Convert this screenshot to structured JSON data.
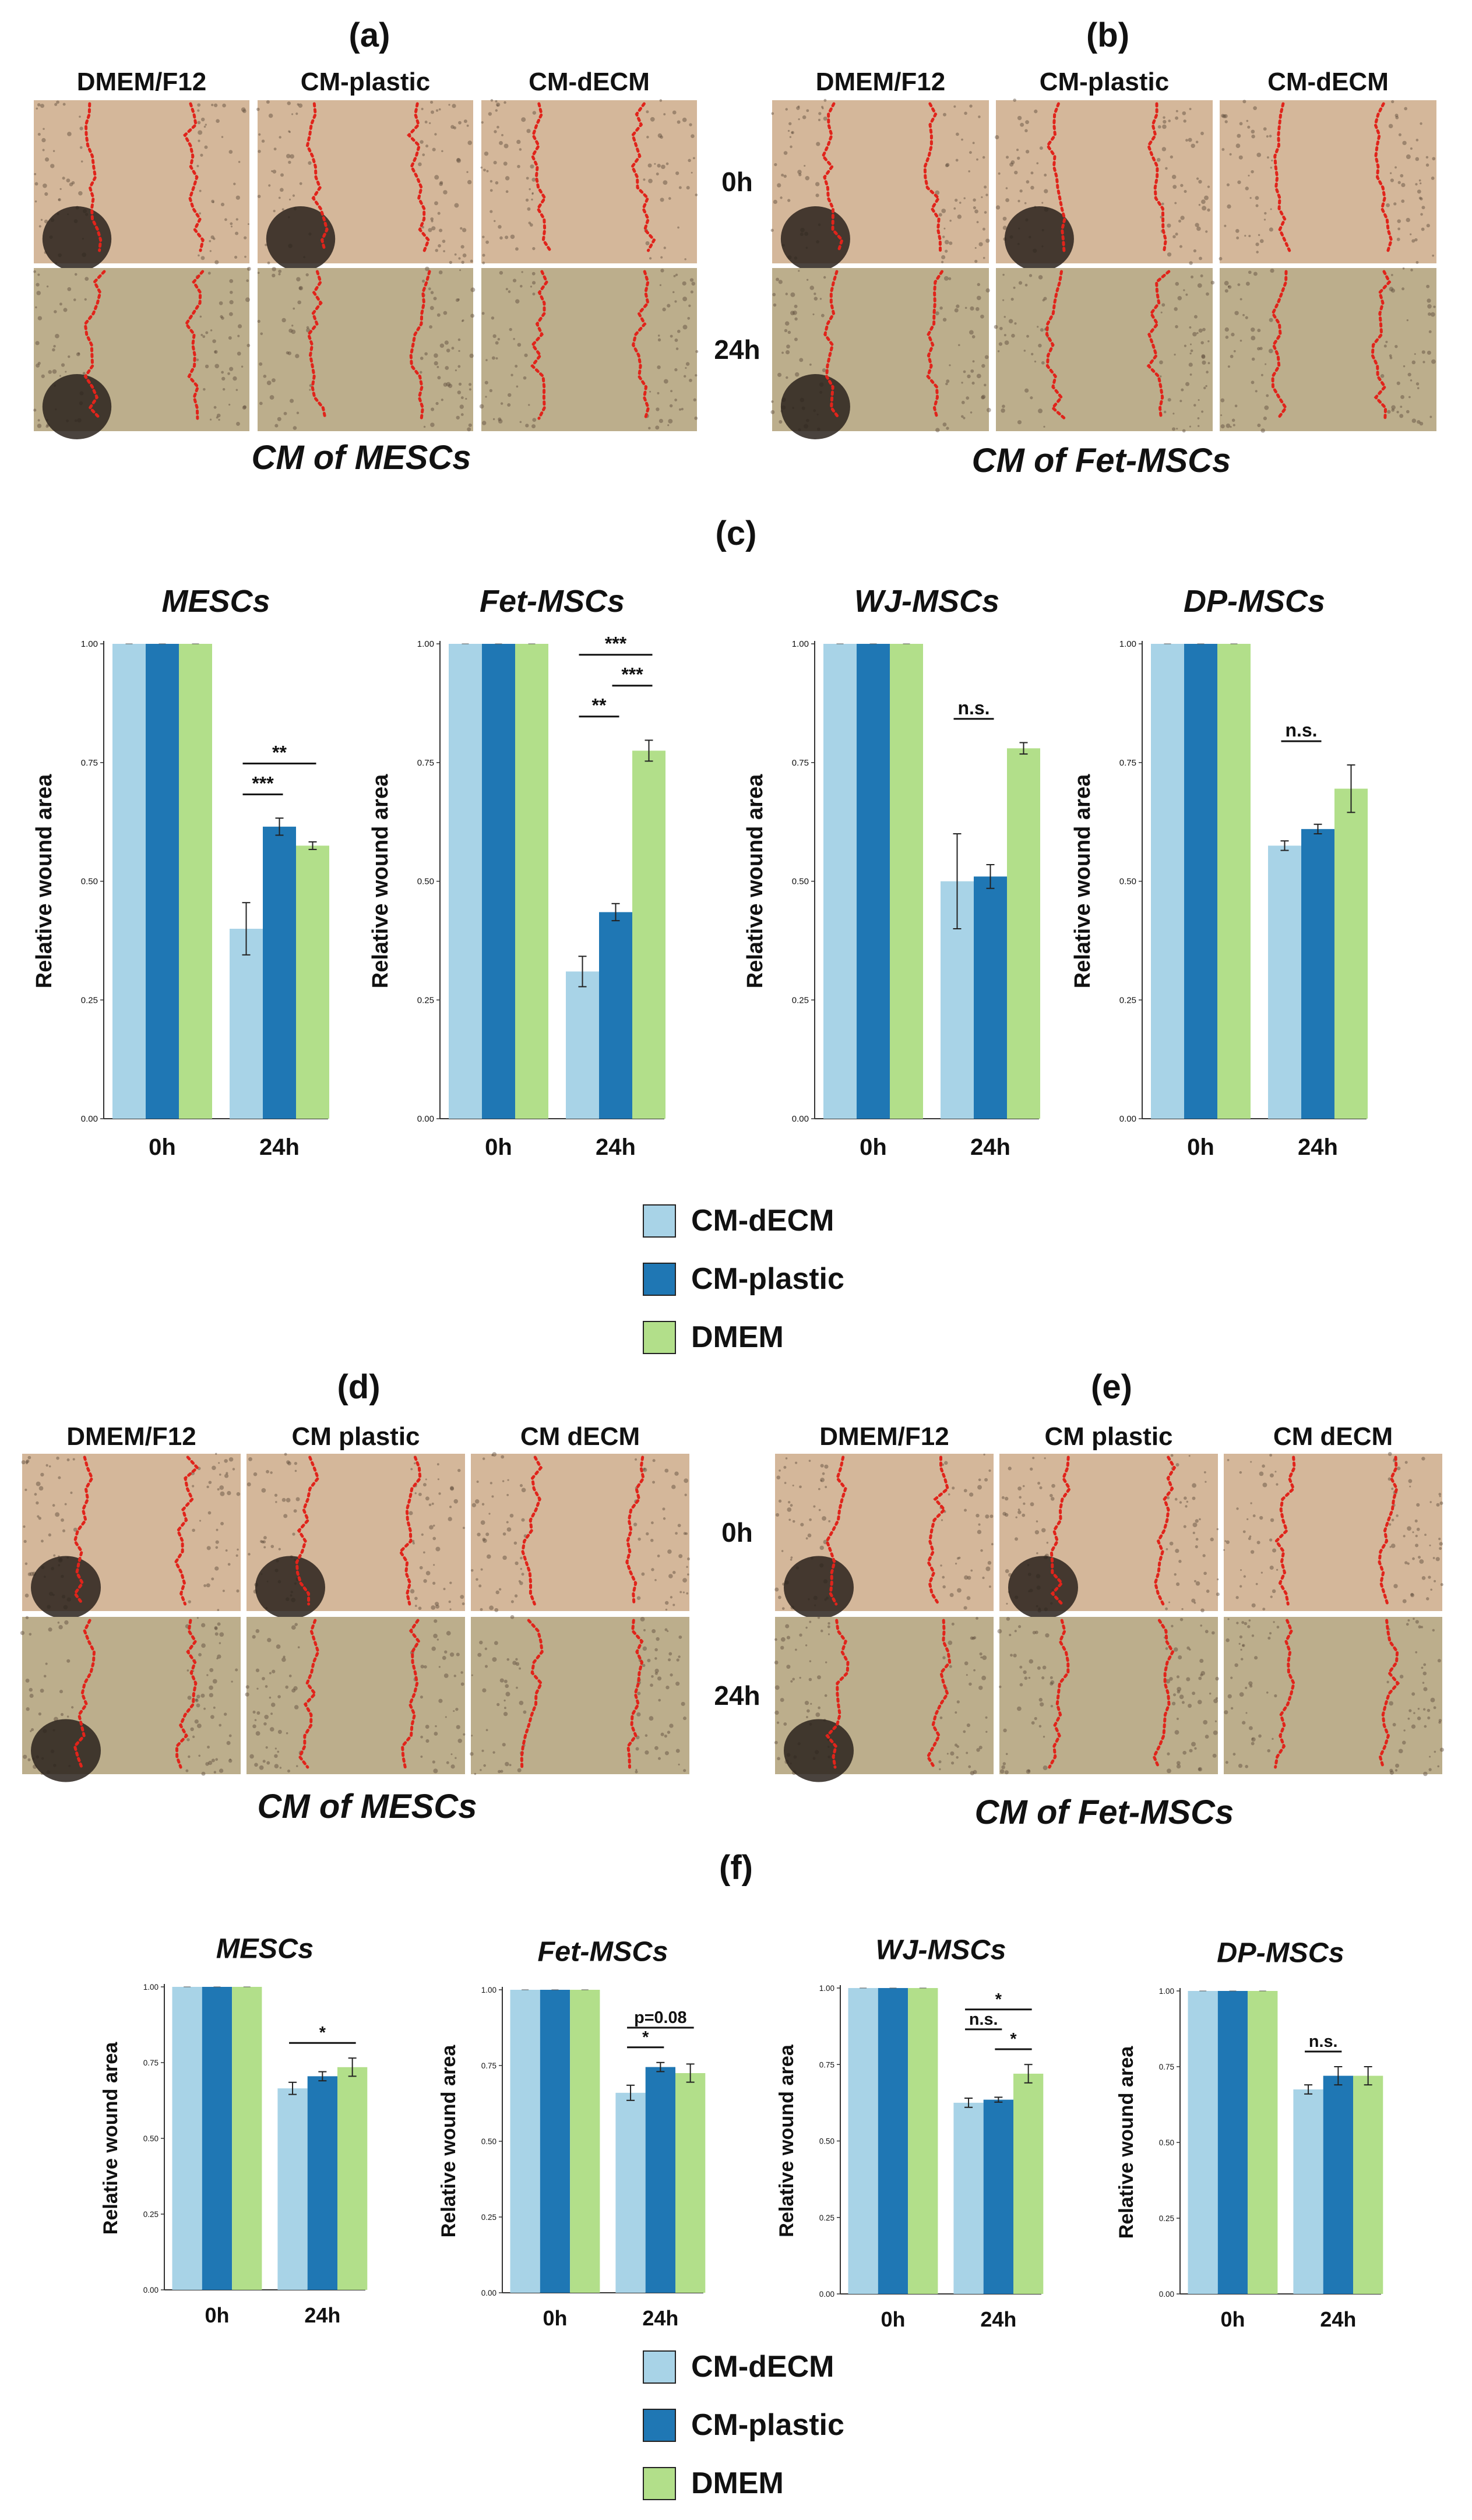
{
  "panels": [
    {
      "letter": "(a)",
      "columns": [
        "DMEM/F12",
        "CM-plastic",
        "CM-dECM"
      ],
      "rows": [
        "0h",
        "24h"
      ],
      "caption": "CM of MESCs"
    },
    {
      "letter": "(b)",
      "columns": [
        "DMEM/F12",
        "CM-plastic",
        "CM-dECM"
      ],
      "rows": [],
      "caption": "CM of Fet-MSCs"
    },
    {
      "letter": "(d)",
      "columns": [
        "DMEM/F12",
        "CM plastic",
        "CM dECM"
      ],
      "rows": [
        "0h",
        "24h"
      ],
      "caption": "CM of MESCs"
    },
    {
      "letter": "(e)",
      "columns": [
        "DMEM/F12",
        "CM plastic",
        "CM dECM"
      ],
      "rows": [],
      "caption": "CM of Fet-MSCs"
    }
  ],
  "chart_groups": [
    {
      "letter": "(c)",
      "legend": [
        "CM-dECM",
        "CM-plastic",
        "DMEM"
      ]
    },
    {
      "letter": "(f)",
      "legend": [
        "CM-dECM",
        "CM-plastic",
        "DMEM"
      ]
    }
  ],
  "colors": {
    "CM-dECM": "#a8d3e7",
    "CM-plastic": "#1f77b4",
    "DMEM": "#b2df8a",
    "wound_line": "#e0241b",
    "bg0": "#d4b79a",
    "bg24": "#bcae8c"
  },
  "chart_data": [
    {
      "id": "c1",
      "type": "bar",
      "title": "MESCs",
      "ylabel": "Relative wound area",
      "categories": [
        "0h",
        "24h"
      ],
      "yticks": [
        "0.00",
        "0.25",
        "0.50",
        "0.75",
        "1.00"
      ],
      "ylim": [
        0,
        1
      ],
      "series": [
        {
          "name": "CM-dECM",
          "values": [
            1.0,
            0.4
          ],
          "errors": [
            0,
            0.055
          ]
        },
        {
          "name": "CM-plastic",
          "values": [
            1.0,
            0.615
          ],
          "errors": [
            0,
            0.018
          ]
        },
        {
          "name": "DMEM",
          "values": [
            1.0,
            0.575
          ],
          "errors": [
            0,
            0.008
          ]
        }
      ],
      "annotations": [
        {
          "text": "**",
          "from": 0,
          "to": 2
        },
        {
          "text": "***",
          "from": 0,
          "to": 1
        }
      ]
    },
    {
      "id": "c2",
      "type": "bar",
      "title": "Fet-MSCs",
      "ylabel": "Relative wound area",
      "categories": [
        "0h",
        "24h"
      ],
      "yticks": [
        "0.00",
        "0.25",
        "0.50",
        "0.75",
        "1.00"
      ],
      "ylim": [
        0,
        1
      ],
      "series": [
        {
          "name": "CM-dECM",
          "values": [
            1.0,
            0.31
          ],
          "errors": [
            0,
            0.032
          ]
        },
        {
          "name": "CM-plastic",
          "values": [
            1.0,
            0.435
          ],
          "errors": [
            0,
            0.018
          ]
        },
        {
          "name": "DMEM",
          "values": [
            1.0,
            0.775
          ],
          "errors": [
            0,
            0.022
          ]
        }
      ],
      "annotations": [
        {
          "text": "***",
          "from": 0,
          "to": 2
        },
        {
          "text": "***",
          "from": 1,
          "to": 2
        },
        {
          "text": "**",
          "from": 0,
          "to": 1
        }
      ]
    },
    {
      "id": "c3",
      "type": "bar",
      "title": "WJ-MSCs",
      "ylabel": "Relative wound area",
      "categories": [
        "0h",
        "24h"
      ],
      "yticks": [
        "0.00",
        "0.25",
        "0.50",
        "0.75",
        "1.00"
      ],
      "ylim": [
        0,
        1
      ],
      "series": [
        {
          "name": "CM-dECM",
          "values": [
            1.0,
            0.5
          ],
          "errors": [
            0,
            0.1
          ]
        },
        {
          "name": "CM-plastic",
          "values": [
            1.0,
            0.51
          ],
          "errors": [
            0,
            0.025
          ]
        },
        {
          "name": "DMEM",
          "values": [
            1.0,
            0.78
          ],
          "errors": [
            0,
            0.012
          ]
        }
      ],
      "annotations": [
        {
          "text": "n.s.",
          "from": 0,
          "to": 1
        }
      ]
    },
    {
      "id": "c4",
      "type": "bar",
      "title": "DP-MSCs",
      "ylabel": "Relative wound area",
      "categories": [
        "0h",
        "24h"
      ],
      "yticks": [
        "0.00",
        "0.25",
        "0.50",
        "0.75",
        "1.00"
      ],
      "ylim": [
        0,
        1
      ],
      "series": [
        {
          "name": "CM-dECM",
          "values": [
            1.0,
            0.575
          ],
          "errors": [
            0,
            0.01
          ]
        },
        {
          "name": "CM-plastic",
          "values": [
            1.0,
            0.61
          ],
          "errors": [
            0,
            0.01
          ]
        },
        {
          "name": "DMEM",
          "values": [
            1.0,
            0.695
          ],
          "errors": [
            0,
            0.05
          ]
        }
      ],
      "annotations": [
        {
          "text": "n.s.",
          "from": 0,
          "to": 1
        }
      ]
    },
    {
      "id": "f1",
      "type": "bar",
      "title": "MESCs",
      "ylabel": "Relative wound area",
      "categories": [
        "0h",
        "24h"
      ],
      "yticks": [
        "0.00",
        "0.25",
        "0.50",
        "0.75",
        "1.00"
      ],
      "ylim": [
        0,
        1
      ],
      "series": [
        {
          "name": "CM-dECM",
          "values": [
            1.0,
            0.665
          ],
          "errors": [
            0,
            0.02
          ]
        },
        {
          "name": "CM-plastic",
          "values": [
            1.0,
            0.705
          ],
          "errors": [
            0,
            0.015
          ]
        },
        {
          "name": "DMEM",
          "values": [
            1.0,
            0.735
          ],
          "errors": [
            0,
            0.03
          ]
        }
      ],
      "annotations": [
        {
          "text": "*",
          "from": 0,
          "to": 2
        }
      ]
    },
    {
      "id": "f2",
      "type": "bar",
      "title": "Fet-MSCs",
      "ylabel": "Relative wound area",
      "categories": [
        "0h",
        "24h"
      ],
      "yticks": [
        "0.00",
        "0.25",
        "0.50",
        "0.75",
        "1.00"
      ],
      "ylim": [
        0,
        1
      ],
      "series": [
        {
          "name": "CM-dECM",
          "values": [
            1.0,
            0.66
          ],
          "errors": [
            0,
            0.025
          ]
        },
        {
          "name": "CM-plastic",
          "values": [
            1.0,
            0.745
          ],
          "errors": [
            0,
            0.015
          ]
        },
        {
          "name": "DMEM",
          "values": [
            1.0,
            0.725
          ],
          "errors": [
            0,
            0.03
          ]
        }
      ],
      "annotations": [
        {
          "text": "p=0.08",
          "from": 0,
          "to": 2
        },
        {
          "text": "*",
          "from": 0,
          "to": 1
        }
      ]
    },
    {
      "id": "f3",
      "type": "bar",
      "title": "WJ-MSCs",
      "ylabel": "Relative wound area",
      "categories": [
        "0h",
        "24h"
      ],
      "yticks": [
        "0.00",
        "0.25",
        "0.50",
        "0.75",
        "1.00"
      ],
      "ylim": [
        0,
        1
      ],
      "series": [
        {
          "name": "CM-dECM",
          "values": [
            1.0,
            0.625
          ],
          "errors": [
            0,
            0.015
          ]
        },
        {
          "name": "CM-plastic",
          "values": [
            1.0,
            0.635
          ],
          "errors": [
            0,
            0.008
          ]
        },
        {
          "name": "DMEM",
          "values": [
            1.0,
            0.72
          ],
          "errors": [
            0,
            0.03
          ]
        }
      ],
      "annotations": [
        {
          "text": "*",
          "from": 0,
          "to": 2
        },
        {
          "text": "n.s.",
          "from": 0,
          "to": 1
        },
        {
          "text": "*",
          "from": 1,
          "to": 2
        }
      ]
    },
    {
      "id": "f4",
      "type": "bar",
      "title": "DP-MSCs",
      "ylabel": "Relative wound area",
      "categories": [
        "0h",
        "24h"
      ],
      "yticks": [
        "0.00",
        "0.25",
        "0.50",
        "0.75",
        "1.00"
      ],
      "ylim": [
        0,
        1
      ],
      "series": [
        {
          "name": "CM-dECM",
          "values": [
            1.0,
            0.675
          ],
          "errors": [
            0,
            0.015
          ]
        },
        {
          "name": "CM-plastic",
          "values": [
            1.0,
            0.72
          ],
          "errors": [
            0,
            0.03
          ]
        },
        {
          "name": "DMEM",
          "values": [
            1.0,
            0.72
          ],
          "errors": [
            0,
            0.03
          ]
        }
      ],
      "annotations": [
        {
          "text": "n.s.",
          "from": 0,
          "to": 1
        }
      ]
    }
  ]
}
